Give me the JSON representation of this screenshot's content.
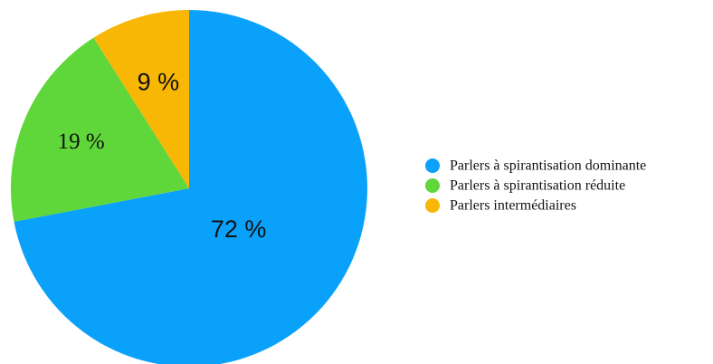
{
  "chart_data": {
    "type": "pie",
    "title": "",
    "legend_position": "right",
    "start_angle": "top",
    "direction": "clockwise",
    "slices": [
      {
        "name": "Parlers à spirantisation dominante",
        "value": 72,
        "label": "72 %",
        "color": "#0aa1fb",
        "label_font": "sans"
      },
      {
        "name": "Parlers à spirantisation réduite",
        "value": 19,
        "label": "19 %",
        "color": "#5fd63a",
        "label_font": "serif"
      },
      {
        "name": "Parlers intermédiaires",
        "value": 9,
        "label": "9 %",
        "color": "#f8b605",
        "label_font": "sans"
      }
    ]
  }
}
